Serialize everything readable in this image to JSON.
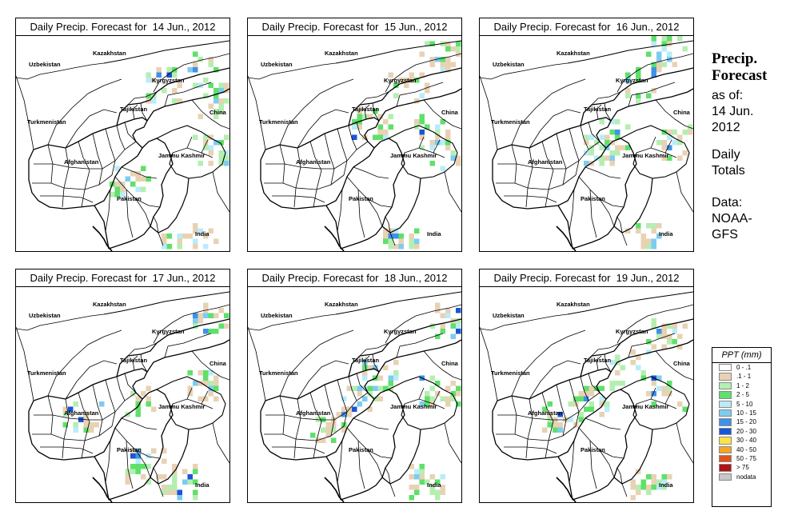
{
  "panels": [
    {
      "title": "Daily Precip. Forecast for  14 Jun., 2012"
    },
    {
      "title": "Daily Precip. Forecast for  15 Jun., 2012"
    },
    {
      "title": "Daily Precip. Forecast for  16 Jun., 2012"
    },
    {
      "title": "Daily Precip. Forecast for  17 Jun., 2012"
    },
    {
      "title": "Daily Precip. Forecast for  18 Jun., 2012"
    },
    {
      "title": "Daily Precip. Forecast for  19 Jun., 2012"
    }
  ],
  "map_labels": {
    "kazakhstan": "Kazakhstan",
    "uzbekistan": "Uzbekistan",
    "kyrgyzstan": "Kyrgyzstan",
    "tajikistan": "Tajikistan",
    "turkmenistan": "Turkmenistan",
    "china": "China",
    "afghanistan": "Afghanistan",
    "jammu_kashmir": "Jammu Kashmir",
    "pakistan": "Pakistan",
    "india": "India"
  },
  "sidebar": {
    "title_line1": "Precip.",
    "title_line2": "Forecast",
    "asof_line1": "as of:",
    "asof_line2": "14 Jun.",
    "asof_line3": "2012",
    "totals_line1": "Daily",
    "totals_line2": "Totals",
    "source_line1": "Data:",
    "source_line2": "NOAA-",
    "source_line3": "GFS"
  },
  "legend": {
    "title": "PPT (mm)",
    "items": [
      {
        "label": "0 - .1",
        "color": "#ffffff"
      },
      {
        "label": ".1 - 1",
        "color": "#e8d2b4"
      },
      {
        "label": "1 - 2",
        "color": "#b5eeb1"
      },
      {
        "label": "2 - 5",
        "color": "#5fe06a"
      },
      {
        "label": "5 - 10",
        "color": "#b8ecfa"
      },
      {
        "label": "10 - 15",
        "color": "#7ecbf2"
      },
      {
        "label": "15 - 20",
        "color": "#3f91ea"
      },
      {
        "label": "20 - 30",
        "color": "#1a55d6"
      },
      {
        "label": "30 - 40",
        "color": "#ffe14a"
      },
      {
        "label": "40 - 50",
        "color": "#f5a623"
      },
      {
        "label": "50 - 75",
        "color": "#e3531b"
      },
      {
        "label": "> 75",
        "color": "#b31212"
      },
      {
        "label": "nodata",
        "color": "#c8c8c8"
      }
    ]
  }
}
